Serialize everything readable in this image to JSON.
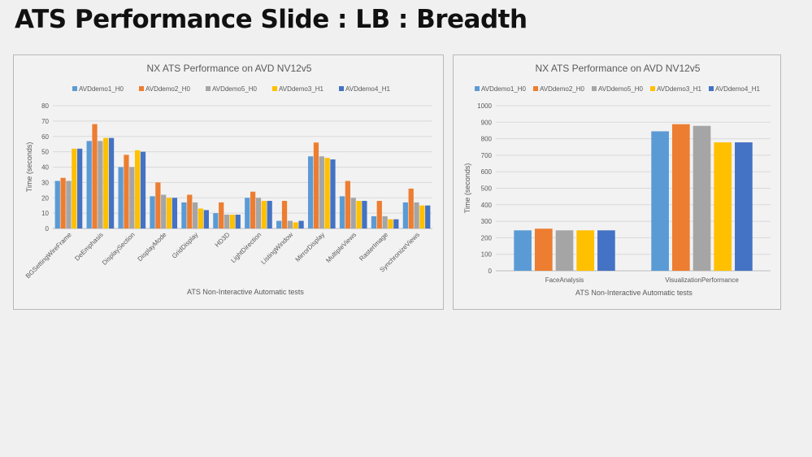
{
  "slide": {
    "title": "ATS Performance Slide : LB : Breadth"
  },
  "colors": {
    "AVDdemo1_H0": "#5b9bd5",
    "AVDdemo2_H0": "#ed7d31",
    "AVDdemo5_H0": "#a5a5a5",
    "AVDdemo3_H1": "#ffc000",
    "AVDdemo4_H1": "#4472c4"
  },
  "chart_data": [
    {
      "type": "bar",
      "title": "NX ATS Performance on AVD NV12v5",
      "xlabel": "ATS Non-Interactive Automatic tests",
      "ylabel": "Time (seconds)",
      "ylim": [
        0,
        80
      ],
      "yticks": [
        0,
        10,
        20,
        30,
        40,
        50,
        60,
        70,
        80
      ],
      "legend_position": "top",
      "categories": [
        "BGSettingWireFrame",
        "DeEmphasis",
        "DisplaySection",
        "DisplayMode",
        "GridDisplay",
        "HD3D",
        "LightDirection",
        "ListingWindow",
        "MirrorDisplay",
        "MultipleViews",
        "RasterImage",
        "SynchronizeViews"
      ],
      "series": [
        {
          "name": "AVDdemo1_H0",
          "values": [
            31,
            57,
            40,
            21,
            17,
            10,
            20,
            5,
            47,
            21,
            8,
            17
          ]
        },
        {
          "name": "AVDdemo2_H0",
          "values": [
            33,
            68,
            48,
            30,
            22,
            17,
            24,
            18,
            56,
            31,
            18,
            26
          ]
        },
        {
          "name": "AVDdemo5_H0",
          "values": [
            31,
            57,
            40,
            22,
            17,
            9,
            20,
            5,
            47,
            20,
            8,
            17
          ]
        },
        {
          "name": "AVDdemo3_H1",
          "values": [
            52,
            59,
            51,
            20,
            13,
            9,
            18,
            4,
            46,
            18,
            6,
            15
          ]
        },
        {
          "name": "AVDdemo4_H1",
          "values": [
            52,
            59,
            50,
            20,
            12,
            9,
            18,
            5,
            45,
            18,
            6,
            15
          ]
        }
      ]
    },
    {
      "type": "bar",
      "title": "NX ATS Performance on AVD NV12v5",
      "xlabel": "ATS Non-Interactive Automatic tests",
      "ylabel": "Time (seconds)",
      "ylim": [
        0,
        1000
      ],
      "yticks": [
        0,
        100,
        200,
        300,
        400,
        500,
        600,
        700,
        800,
        900,
        1000
      ],
      "legend_position": "top",
      "categories": [
        "FaceAnalysis",
        "VisualizationPerformance"
      ],
      "series": [
        {
          "name": "AVDdemo1_H0",
          "values": [
            245,
            845
          ]
        },
        {
          "name": "AVDdemo2_H0",
          "values": [
            255,
            888
          ]
        },
        {
          "name": "AVDdemo5_H0",
          "values": [
            245,
            878
          ]
        },
        {
          "name": "AVDdemo3_H1",
          "values": [
            245,
            778
          ]
        },
        {
          "name": "AVDdemo4_H1",
          "values": [
            245,
            778
          ]
        }
      ]
    }
  ]
}
